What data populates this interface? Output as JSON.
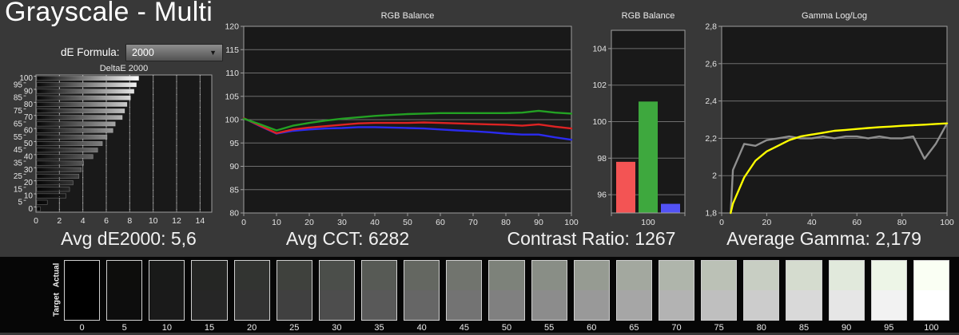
{
  "page_title": "Grayscale - Multi",
  "formula": {
    "label": "dE Formula:",
    "value": "2000"
  },
  "stats": {
    "avg_de": "Avg dE2000: 5,6",
    "avg_cct": "Avg CCT: 6282",
    "contrast": "Contrast Ratio: 1267",
    "avg_gamma": "Average Gamma: 2,179"
  },
  "colors": {
    "background": "#383838",
    "plot_bg": "#191919",
    "grid": "#6f6f6f",
    "frame": "#9e9e9e",
    "tick_text": "#e3e3e3",
    "red": "#dd2323",
    "green": "#23a123",
    "blue": "#2b2bee",
    "yellow": "#ffff00",
    "gray_line": "#8f8f8f",
    "bar_red": "#f35454",
    "bar_green": "#3ea83e",
    "bar_blue": "#5252f5"
  },
  "chart_data": [
    {
      "type": "bar",
      "orientation": "horizontal",
      "title": "DeltaE 2000",
      "categories": [
        100,
        95,
        90,
        85,
        80,
        75,
        70,
        65,
        60,
        55,
        50,
        45,
        40,
        35,
        30,
        25,
        20,
        15,
        10,
        5,
        0
      ],
      "values": [
        8.7,
        8.5,
        8.3,
        8.0,
        7.7,
        7.5,
        7.3,
        6.7,
        6.5,
        6.0,
        5.6,
        5.2,
        4.8,
        4.0,
        3.8,
        3.6,
        3.1,
        2.8,
        2.5,
        0.9,
        0.3
      ],
      "xlim": [
        0,
        15
      ],
      "xticks": [
        0,
        2,
        4,
        6,
        8,
        10,
        12,
        14
      ],
      "grid": true,
      "legend": false
    },
    {
      "type": "line",
      "title": "RGB Balance",
      "x": [
        0,
        5,
        10,
        15,
        20,
        25,
        30,
        35,
        40,
        45,
        50,
        55,
        60,
        65,
        70,
        75,
        80,
        85,
        90,
        95,
        100
      ],
      "series": [
        {
          "name": "blue",
          "color": "#2b2bee",
          "values": [
            100.3,
            98.6,
            97.0,
            97.6,
            97.9,
            98.1,
            98.2,
            98.4,
            98.4,
            98.3,
            98.2,
            98.1,
            97.9,
            97.7,
            97.5,
            97.3,
            97.0,
            96.8,
            96.8,
            96.2,
            95.7
          ]
        },
        {
          "name": "red",
          "color": "#dd2323",
          "values": [
            100.3,
            98.7,
            97.1,
            97.9,
            98.3,
            98.6,
            98.9,
            99.2,
            99.3,
            99.3,
            99.3,
            99.4,
            99.3,
            99.2,
            99.1,
            99.0,
            98.9,
            98.7,
            99.0,
            98.5,
            98.1
          ]
        },
        {
          "name": "green",
          "color": "#23a123",
          "values": [
            100.2,
            99.0,
            97.7,
            98.7,
            99.3,
            99.8,
            100.2,
            100.5,
            100.8,
            101.0,
            101.2,
            101.3,
            101.4,
            101.4,
            101.4,
            101.4,
            101.4,
            101.5,
            101.9,
            101.5,
            101.3
          ]
        }
      ],
      "xlim": [
        0,
        100
      ],
      "ylim": [
        80,
        120
      ],
      "yticks": [
        80,
        85,
        90,
        95,
        100,
        105,
        110,
        115,
        120
      ],
      "xticks": [
        0,
        10,
        20,
        30,
        40,
        50,
        60,
        70,
        80,
        90,
        100
      ],
      "grid": true,
      "legend": false
    },
    {
      "type": "bar",
      "orientation": "vertical",
      "title": "RGB Balance",
      "categories": [
        "red",
        "green",
        "blue"
      ],
      "values": [
        97.8,
        101.1,
        95.5
      ],
      "bar_colors": [
        "#f35454",
        "#3ea83e",
        "#5252f5"
      ],
      "ylim": [
        95,
        105
      ],
      "yticks": [
        96,
        98,
        100,
        102,
        104
      ],
      "xtick_label": "100",
      "grid": true,
      "legend": false
    },
    {
      "type": "line",
      "title": "Gamma Log/Log",
      "x": [
        4,
        5,
        10,
        15,
        20,
        25,
        30,
        35,
        40,
        45,
        50,
        55,
        60,
        65,
        70,
        75,
        80,
        85,
        90,
        95,
        100
      ],
      "series": [
        {
          "name": "measured gamma",
          "color": "#8f8f8f",
          "values": [
            1.8,
            2.03,
            2.17,
            2.16,
            2.19,
            2.2,
            2.21,
            2.2,
            2.2,
            2.21,
            2.2,
            2.21,
            2.21,
            2.2,
            2.21,
            2.2,
            2.2,
            2.21,
            2.09,
            2.17,
            2.28
          ]
        },
        {
          "name": "target gamma",
          "color": "#ffff00",
          "values": [
            1.8,
            1.85,
            1.99,
            2.08,
            2.13,
            2.16,
            2.19,
            2.21,
            2.22,
            2.23,
            2.24,
            2.245,
            2.25,
            2.255,
            2.26,
            2.263,
            2.267,
            2.27,
            2.273,
            2.277,
            2.28
          ]
        }
      ],
      "xlim": [
        0,
        100
      ],
      "ylim": [
        1.8,
        2.8
      ],
      "yticks": [
        1.8,
        2.0,
        2.2,
        2.4,
        2.6,
        2.8
      ],
      "ytick_labels": [
        "1,8",
        "2",
        "2,2",
        "2,4",
        "2,6",
        "2,8"
      ],
      "xticks": [
        0,
        20,
        40,
        60,
        80,
        100
      ],
      "grid": true,
      "legend": false
    }
  ],
  "swatches": {
    "row_labels": [
      "Actual",
      "Target"
    ],
    "levels": [
      0,
      5,
      10,
      15,
      20,
      25,
      30,
      35,
      40,
      45,
      50,
      55,
      60,
      65,
      70,
      75,
      80,
      85,
      90,
      95,
      100
    ],
    "actual": [
      "#000000",
      "#0d0d0c",
      "#191a19",
      "#252624",
      "#323431",
      "#3f413d",
      "#4b4e4a",
      "#575a55",
      "#646761",
      "#71746e",
      "#7d827a",
      "#898e86",
      "#969b92",
      "#a3a89f",
      "#afb5ab",
      "#bbc1b6",
      "#c8cec3",
      "#d5dccf",
      "#e1e9dc",
      "#edf5e7",
      "#fafff4"
    ],
    "target": [
      "#000000",
      "#0d0d0d",
      "#1a1a1a",
      "#262626",
      "#333333",
      "#404040",
      "#4d4d4d",
      "#595959",
      "#666666",
      "#737373",
      "#808080",
      "#8c8c8c",
      "#999999",
      "#a6a6a6",
      "#b3b3b3",
      "#bfbfbf",
      "#cccccc",
      "#d9d9d9",
      "#e6e6e6",
      "#f2f2f2",
      "#ffffff"
    ]
  }
}
